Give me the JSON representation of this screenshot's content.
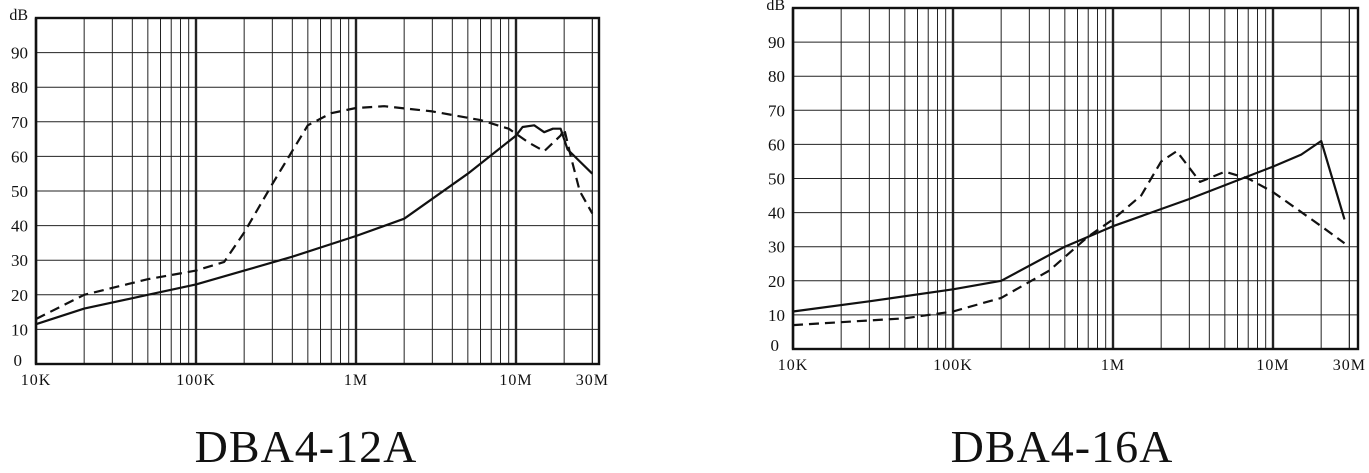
{
  "chart_data": [
    {
      "type": "line",
      "title": "DBA4-12A",
      "ylabel": "dB",
      "xscale": "log",
      "xlim": [
        10000,
        30000000
      ],
      "ylim": [
        0,
        100
      ],
      "grid": true,
      "x_tick_labels": [
        "10K",
        "100K",
        "1M",
        "10M",
        "30M"
      ],
      "x_ticks": [
        10000,
        100000,
        1000000,
        10000000,
        30000000
      ],
      "y_tick_labels": [
        "0",
        "10",
        "20",
        "30",
        "40",
        "50",
        "60",
        "70",
        "80",
        "90"
      ],
      "series": [
        {
          "style": "solid",
          "color": "#111111",
          "x": [
            10000,
            20000,
            50000,
            100000,
            200000,
            400000,
            1000000,
            2000000,
            5000000,
            10000000,
            11000000,
            13000000,
            15000000,
            17000000,
            19000000,
            21000000,
            30000000
          ],
          "y": [
            11.5,
            16,
            20,
            23,
            27,
            31,
            37,
            42,
            55,
            66,
            68.5,
            69,
            67,
            68,
            68,
            62,
            55
          ]
        },
        {
          "style": "dashed",
          "color": "#111111",
          "x": [
            10000,
            20000,
            50000,
            100000,
            150000,
            200000,
            300000,
            500000,
            700000,
            1000000,
            1500000,
            3000000,
            6000000,
            9000000,
            12000000,
            15000000,
            19000000,
            20000000,
            22000000,
            25000000,
            30000000
          ],
          "y": [
            13,
            20,
            24.5,
            27,
            29.5,
            38,
            52,
            69,
            72.5,
            74,
            74.5,
            73,
            70.5,
            68,
            64,
            61.5,
            66,
            68,
            60,
            50,
            43.5
          ]
        }
      ]
    },
    {
      "type": "line",
      "title": "DBA4-16A",
      "ylabel": "dB",
      "xscale": "log",
      "xlim": [
        10000,
        30000000
      ],
      "ylim": [
        0,
        100
      ],
      "grid": true,
      "x_tick_labels": [
        "10K",
        "100K",
        "1M",
        "10M",
        "30M"
      ],
      "x_ticks": [
        10000,
        100000,
        1000000,
        10000000,
        30000000
      ],
      "y_tick_labels": [
        "0",
        "10",
        "20",
        "30",
        "40",
        "50",
        "60",
        "70",
        "80",
        "90"
      ],
      "series": [
        {
          "style": "solid",
          "color": "#111111",
          "x": [
            10000,
            30000,
            100000,
            200000,
            500000,
            1000000,
            3000000,
            10000000,
            15000000,
            20000000,
            28000000
          ],
          "y": [
            11,
            14,
            17.5,
            20,
            30,
            36,
            44,
            53.5,
            57,
            61,
            38
          ]
        },
        {
          "style": "dashed",
          "color": "#111111",
          "x": [
            10000,
            50000,
            100000,
            200000,
            400000,
            700000,
            1000000,
            1500000,
            2000000,
            2500000,
            3500000,
            5000000,
            7000000,
            10000000,
            20000000,
            28000000
          ],
          "y": [
            7,
            9,
            11,
            15,
            23,
            33,
            38,
            45,
            55,
            58,
            49,
            52,
            50,
            46,
            36,
            31
          ]
        }
      ]
    }
  ]
}
